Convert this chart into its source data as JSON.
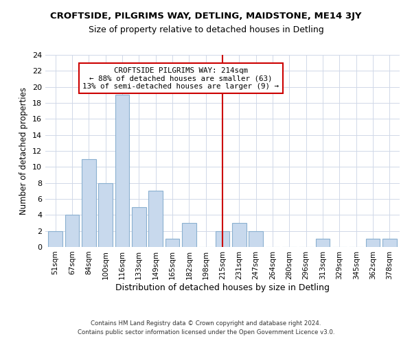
{
  "title": "CROFTSIDE, PILGRIMS WAY, DETLING, MAIDSTONE, ME14 3JY",
  "subtitle": "Size of property relative to detached houses in Detling",
  "xlabel": "Distribution of detached houses by size in Detling",
  "ylabel": "Number of detached properties",
  "bar_labels": [
    "51sqm",
    "67sqm",
    "84sqm",
    "100sqm",
    "116sqm",
    "133sqm",
    "149sqm",
    "165sqm",
    "182sqm",
    "198sqm",
    "215sqm",
    "231sqm",
    "247sqm",
    "264sqm",
    "280sqm",
    "296sqm",
    "313sqm",
    "329sqm",
    "345sqm",
    "362sqm",
    "378sqm"
  ],
  "bar_heights": [
    2,
    4,
    11,
    8,
    19,
    5,
    7,
    1,
    3,
    0,
    2,
    3,
    2,
    0,
    0,
    0,
    1,
    0,
    0,
    1,
    1
  ],
  "bar_color": "#c8d9ed",
  "bar_edge_color": "#8ab0d0",
  "vline_x": 10,
  "vline_color": "#cc0000",
  "ylim": [
    0,
    24
  ],
  "yticks": [
    0,
    2,
    4,
    6,
    8,
    10,
    12,
    14,
    16,
    18,
    20,
    22,
    24
  ],
  "annotation_title": "CROFTSIDE PILGRIMS WAY: 214sqm",
  "annotation_line1": "← 88% of detached houses are smaller (63)",
  "annotation_line2": "13% of semi-detached houses are larger (9) →",
  "annotation_box_color": "#ffffff",
  "annotation_box_edge": "#cc0000",
  "footer1": "Contains HM Land Registry data © Crown copyright and database right 2024.",
  "footer2": "Contains public sector information licensed under the Open Government Licence v3.0.",
  "background_color": "#ffffff",
  "grid_color": "#d0d8e8",
  "title_fontsize": 9.5,
  "subtitle_fontsize": 9.0
}
